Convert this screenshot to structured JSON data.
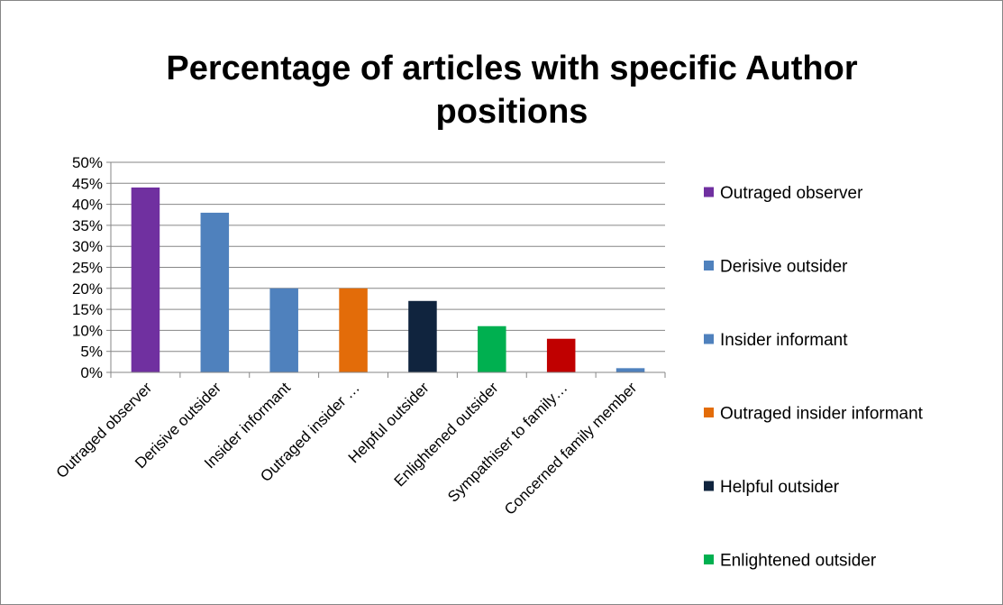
{
  "chart_data": {
    "type": "bar",
    "title_lines": [
      "Percentage of articles with specific Author",
      "positions"
    ],
    "xlabel": "",
    "ylabel": "",
    "ylim": [
      0,
      50
    ],
    "ytick_step": 5,
    "ytick_labels": [
      "0%",
      "5%",
      "10%",
      "15%",
      "20%",
      "25%",
      "30%",
      "35%",
      "40%",
      "45%",
      "50%"
    ],
    "grid": true,
    "legend_position": "right",
    "categories": [
      "Outraged observer",
      "Derisive outsider",
      "Insider informant",
      "Outraged insider …",
      "Helpful outsider",
      "Enlightened outsider",
      "Sympathiser to family…",
      "Concerned family member"
    ],
    "values": [
      44,
      38,
      20,
      20,
      17,
      11,
      8,
      1
    ],
    "colors": [
      "#7030a0",
      "#4f81bd",
      "#4f81bd",
      "#e36c09",
      "#10243e",
      "#00b050",
      "#c00000",
      "#4f81bd"
    ],
    "legend": [
      {
        "label": "Outraged observer",
        "color": "#7030a0"
      },
      {
        "label": "Derisive outsider",
        "color": "#4f81bd"
      },
      {
        "label": "Insider informant",
        "color": "#4f81bd"
      },
      {
        "label": "Outraged insider informant",
        "color": "#e36c09"
      },
      {
        "label": "Helpful outsider",
        "color": "#10243e"
      },
      {
        "label": "Enlightened outsider",
        "color": "#00b050"
      }
    ]
  }
}
